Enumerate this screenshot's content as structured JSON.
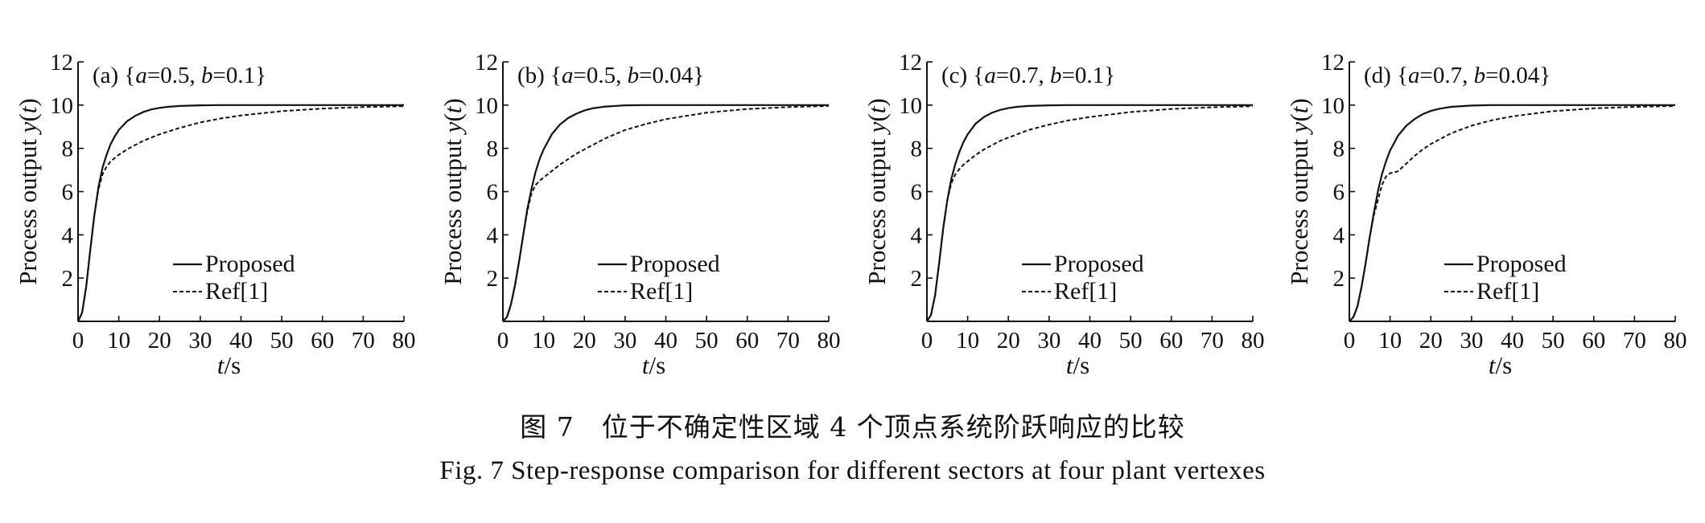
{
  "caption": {
    "cn": "图 7　位于不确定性区域 4 个顶点系统阶跃响应的比较",
    "en": "Fig. 7  Step-response comparison for different sectors at four plant vertexes"
  },
  "chart_data": [
    {
      "type": "line",
      "title": "(a) {a=0.5, b=0.1}",
      "xlabel": "t/s",
      "ylabel": "Process output y(t)",
      "xlim": [
        0,
        80
      ],
      "ylim": [
        0,
        12
      ],
      "xticks": [
        0,
        10,
        20,
        30,
        40,
        50,
        60,
        70,
        80
      ],
      "yticks": [
        2,
        4,
        6,
        8,
        10,
        12
      ],
      "legend": "bottom-center",
      "series": [
        {
          "name": "Proposed",
          "style": "solid",
          "x": [
            0,
            1,
            2,
            3,
            4,
            5,
            6,
            7,
            8,
            9,
            10,
            12,
            14,
            16,
            18,
            20,
            22,
            25,
            30,
            35,
            40,
            50,
            60,
            70,
            80
          ],
          "y": [
            0,
            0.4,
            1.6,
            3.3,
            4.9,
            6.2,
            7.1,
            7.7,
            8.2,
            8.55,
            8.85,
            9.25,
            9.5,
            9.68,
            9.8,
            9.87,
            9.92,
            9.96,
            9.99,
            10,
            10,
            10,
            10,
            10,
            10
          ]
        },
        {
          "name": "Ref[1]",
          "style": "dashed",
          "x": [
            0,
            1,
            2,
            3,
            4,
            5,
            6,
            7,
            8,
            9,
            10,
            12,
            14,
            16,
            18,
            20,
            25,
            30,
            35,
            40,
            50,
            60,
            70,
            80
          ],
          "y": [
            0,
            0.4,
            1.6,
            3.3,
            4.9,
            6.1,
            6.8,
            7.15,
            7.4,
            7.55,
            7.7,
            7.95,
            8.15,
            8.35,
            8.5,
            8.65,
            8.95,
            9.2,
            9.38,
            9.52,
            9.72,
            9.84,
            9.91,
            9.95
          ]
        }
      ]
    },
    {
      "type": "line",
      "title": "(b) {a=0.5, b=0.04}",
      "xlabel": "t/s",
      "ylabel": "Process output y(t)",
      "xlim": [
        0,
        80
      ],
      "ylim": [
        0,
        12
      ],
      "xticks": [
        0,
        10,
        20,
        30,
        40,
        50,
        60,
        70,
        80
      ],
      "yticks": [
        2,
        4,
        6,
        8,
        10,
        12
      ],
      "legend": "bottom-center",
      "series": [
        {
          "name": "Proposed",
          "style": "solid",
          "x": [
            0,
            1,
            2,
            3,
            4,
            5,
            6,
            7,
            8,
            9,
            10,
            12,
            14,
            16,
            18,
            20,
            22,
            25,
            30,
            35,
            40,
            50,
            60,
            70,
            80
          ],
          "y": [
            0,
            0.2,
            0.8,
            1.7,
            2.8,
            4.0,
            5.2,
            6.1,
            6.9,
            7.5,
            7.95,
            8.65,
            9.1,
            9.4,
            9.6,
            9.75,
            9.85,
            9.93,
            9.99,
            10,
            10,
            10,
            10,
            10,
            10
          ]
        },
        {
          "name": "Ref[1]",
          "style": "dashed",
          "x": [
            0,
            1,
            2,
            3,
            4,
            5,
            6,
            7,
            8,
            9,
            10,
            12,
            14,
            16,
            18,
            20,
            25,
            30,
            35,
            40,
            50,
            60,
            70,
            80
          ],
          "y": [
            0,
            0.2,
            0.8,
            1.7,
            2.8,
            4.0,
            5.1,
            5.9,
            6.3,
            6.5,
            6.65,
            6.95,
            7.25,
            7.5,
            7.75,
            7.95,
            8.45,
            8.85,
            9.12,
            9.35,
            9.65,
            9.82,
            9.91,
            9.96
          ]
        }
      ]
    },
    {
      "type": "line",
      "title": "(c) {a=0.7, b=0.1}",
      "xlabel": "t/s",
      "ylabel": "Process output y(t)",
      "xlim": [
        0,
        80
      ],
      "ylim": [
        0,
        12
      ],
      "xticks": [
        0,
        10,
        20,
        30,
        40,
        50,
        60,
        70,
        80
      ],
      "yticks": [
        2,
        4,
        6,
        8,
        10,
        12
      ],
      "legend": "bottom-center",
      "series": [
        {
          "name": "Proposed",
          "style": "solid",
          "x": [
            0,
            1,
            2,
            3,
            4,
            5,
            6,
            7,
            8,
            9,
            10,
            12,
            14,
            16,
            18,
            20,
            22,
            25,
            30,
            35,
            40,
            50,
            60,
            70,
            80
          ],
          "y": [
            0,
            0.3,
            1.2,
            2.7,
            4.3,
            5.6,
            6.6,
            7.3,
            7.85,
            8.3,
            8.65,
            9.15,
            9.45,
            9.65,
            9.78,
            9.86,
            9.92,
            9.96,
            9.99,
            10,
            10,
            10,
            10,
            10,
            10
          ]
        },
        {
          "name": "Ref[1]",
          "style": "dashed",
          "x": [
            0,
            1,
            2,
            3,
            4,
            5,
            6,
            7,
            8,
            9,
            10,
            12,
            14,
            16,
            18,
            20,
            25,
            30,
            35,
            40,
            50,
            60,
            70,
            80
          ],
          "y": [
            0,
            0.3,
            1.2,
            2.7,
            4.3,
            5.6,
            6.4,
            6.8,
            7.05,
            7.25,
            7.4,
            7.7,
            7.95,
            8.15,
            8.35,
            8.5,
            8.85,
            9.1,
            9.3,
            9.45,
            9.68,
            9.82,
            9.9,
            9.95
          ]
        }
      ]
    },
    {
      "type": "line",
      "title": "(d) {a=0.7, b=0.04}",
      "xlabel": "t/s",
      "ylabel": "Process output y(t)",
      "xlim": [
        0,
        80
      ],
      "ylim": [
        0,
        12
      ],
      "xticks": [
        0,
        10,
        20,
        30,
        40,
        50,
        60,
        70,
        80
      ],
      "yticks": [
        2,
        4,
        6,
        8,
        10,
        12
      ],
      "legend": "bottom-center",
      "series": [
        {
          "name": "Proposed",
          "style": "solid",
          "x": [
            0,
            1,
            2,
            3,
            4,
            5,
            6,
            7,
            8,
            9,
            10,
            12,
            14,
            16,
            18,
            20,
            22,
            25,
            30,
            35,
            40,
            50,
            60,
            70,
            80
          ],
          "y": [
            0,
            0.2,
            0.7,
            1.6,
            2.7,
            3.9,
            5.0,
            6.0,
            6.8,
            7.4,
            7.9,
            8.6,
            9.05,
            9.35,
            9.58,
            9.73,
            9.83,
            9.92,
            9.98,
            10,
            10,
            10,
            10,
            10,
            10
          ]
        },
        {
          "name": "Ref[1]",
          "style": "dashed",
          "x": [
            0,
            1,
            2,
            3,
            4,
            5,
            6,
            7,
            8,
            9,
            10,
            11,
            12,
            14,
            16,
            18,
            20,
            25,
            30,
            35,
            40,
            50,
            60,
            70,
            80
          ],
          "y": [
            0,
            0.2,
            0.7,
            1.6,
            2.7,
            3.9,
            4.9,
            5.6,
            6.3,
            6.7,
            6.85,
            6.88,
            6.95,
            7.3,
            7.65,
            7.95,
            8.2,
            8.7,
            9.05,
            9.3,
            9.48,
            9.72,
            9.85,
            9.92,
            9.96
          ]
        }
      ]
    }
  ]
}
